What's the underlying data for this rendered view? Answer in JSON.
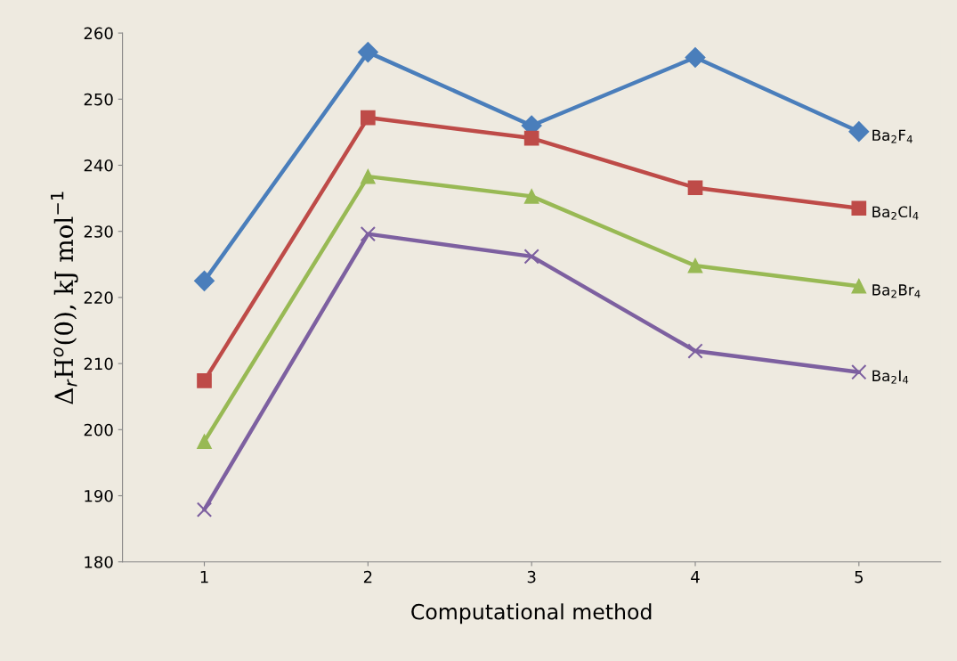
{
  "chart_data": {
    "type": "line",
    "xlabel": "Computational method",
    "ylabel": "Δ$_{r}$H$^{o}$(0), kJ mol$^{−1}$",
    "categories": [
      "1",
      "2",
      "3",
      "4",
      "5"
    ],
    "ylim": [
      180,
      260
    ],
    "yticks": [
      180,
      190,
      200,
      210,
      220,
      230,
      240,
      250,
      260
    ],
    "grid": false,
    "legend": false,
    "series": [
      {
        "name": "Ba$_{2}$F$_{4}$",
        "color": "#4a7ebb",
        "marker": "diamond",
        "values": [
          222.5,
          257.1,
          246.0,
          256.3,
          245.1
        ]
      },
      {
        "name": "Ba$_{2}$Cl$_{4}$",
        "color": "#be4b48",
        "marker": "square",
        "values": [
          207.4,
          247.2,
          244.1,
          236.6,
          233.5
        ]
      },
      {
        "name": "Ba$_{2}$Br$_{4}$",
        "color": "#98b954",
        "marker": "triangle",
        "values": [
          198.2,
          238.3,
          235.3,
          224.8,
          221.7
        ]
      },
      {
        "name": "Ba$_{2}$I$_{4}$",
        "color": "#7d60a0",
        "marker": "cross",
        "values": [
          187.9,
          229.6,
          226.2,
          211.9,
          208.7
        ]
      }
    ]
  }
}
